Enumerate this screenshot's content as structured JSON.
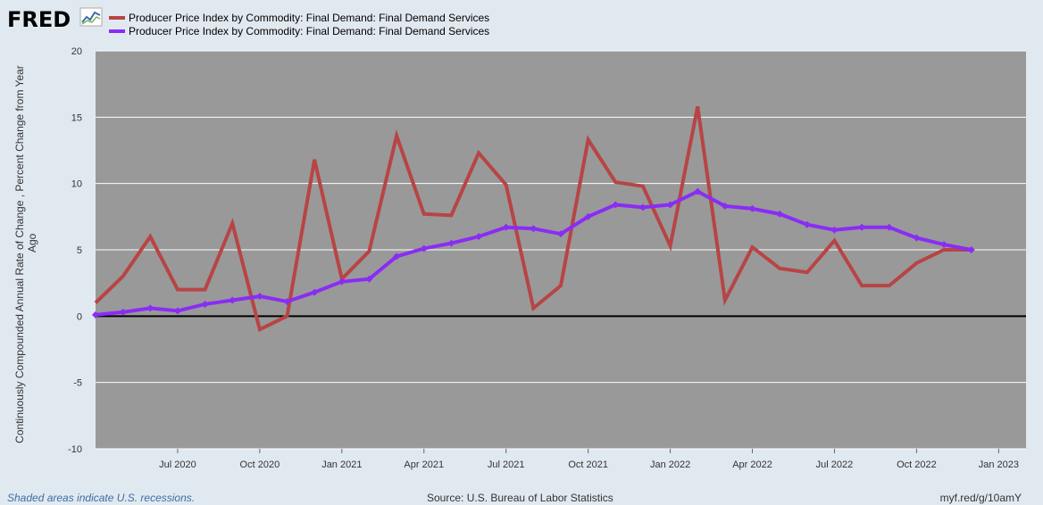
{
  "header": {
    "logo_text": "FRED",
    "logo_icon": "mini-line-chart-icon"
  },
  "colors": {
    "plot_bg": "#999999",
    "grid": "#ffffff",
    "zero_line": "#000000",
    "series1": "#b84445",
    "series2": "#8a2cf5",
    "page_bg": "#e1e9f0"
  },
  "footer": {
    "recession_note": "Shaded areas indicate U.S. recessions.",
    "source": "Source: U.S. Bureau of Labor Statistics",
    "short_url": "myf.red/g/10amY"
  },
  "chart_data": {
    "type": "line",
    "ylabel_line1": "Continuously Compounded Annual Rate of Change , Percent Change from Year",
    "ylabel_line2": "Ago",
    "ylim": [
      -10,
      20
    ],
    "yticks": [
      -10,
      -5,
      0,
      5,
      10,
      15,
      20
    ],
    "grid": true,
    "legend_position": "top-left",
    "x_months": [
      "2020-04",
      "2020-05",
      "2020-06",
      "2020-07",
      "2020-08",
      "2020-09",
      "2020-10",
      "2020-11",
      "2020-12",
      "2021-01",
      "2021-02",
      "2021-03",
      "2021-04",
      "2021-05",
      "2021-06",
      "2021-07",
      "2021-08",
      "2021-09",
      "2021-10",
      "2021-11",
      "2021-12",
      "2022-01",
      "2022-02",
      "2022-03",
      "2022-04",
      "2022-05",
      "2022-06",
      "2022-07",
      "2022-08",
      "2022-09",
      "2022-10",
      "2022-11",
      "2022-12",
      "2023-01",
      "2023-02"
    ],
    "xticks": [
      {
        "month": "2020-07",
        "label": "Jul 2020"
      },
      {
        "month": "2020-10",
        "label": "Oct 2020"
      },
      {
        "month": "2021-01",
        "label": "Jan 2021"
      },
      {
        "month": "2021-04",
        "label": "Apr 2021"
      },
      {
        "month": "2021-07",
        "label": "Jul 2021"
      },
      {
        "month": "2021-10",
        "label": "Oct 2021"
      },
      {
        "month": "2022-01",
        "label": "Jan 2022"
      },
      {
        "month": "2022-04",
        "label": "Apr 2022"
      },
      {
        "month": "2022-07",
        "label": "Jul 2022"
      },
      {
        "month": "2022-10",
        "label": "Oct 2022"
      },
      {
        "month": "2023-01",
        "label": "Jan 2023"
      }
    ],
    "series": [
      {
        "name": "Producer Price Index by Commodity: Final Demand: Final Demand Services",
        "color": "#b84445",
        "markers": false,
        "values": [
          1.0,
          3.0,
          6.0,
          2.0,
          2.0,
          7.0,
          -1.0,
          0.0,
          11.8,
          2.8,
          4.9,
          13.6,
          7.7,
          7.6,
          12.3,
          9.9,
          0.6,
          2.3,
          13.3,
          10.1,
          9.8,
          5.3,
          15.8,
          1.2,
          5.2,
          3.6,
          3.3,
          5.7,
          2.3,
          2.3,
          4.0,
          5.0,
          5.0,
          null,
          null
        ]
      },
      {
        "name": "Producer Price Index by Commodity: Final Demand: Final Demand Services",
        "color": "#8a2cf5",
        "markers": true,
        "values": [
          0.1,
          0.3,
          0.6,
          0.4,
          0.9,
          1.2,
          1.5,
          1.1,
          1.8,
          2.6,
          2.8,
          4.5,
          5.1,
          5.5,
          6.0,
          6.7,
          6.6,
          6.2,
          7.5,
          8.4,
          8.2,
          8.4,
          9.4,
          8.3,
          8.1,
          7.7,
          6.9,
          6.5,
          6.7,
          6.7,
          5.9,
          5.4,
          5.0,
          null,
          null
        ]
      }
    ]
  }
}
